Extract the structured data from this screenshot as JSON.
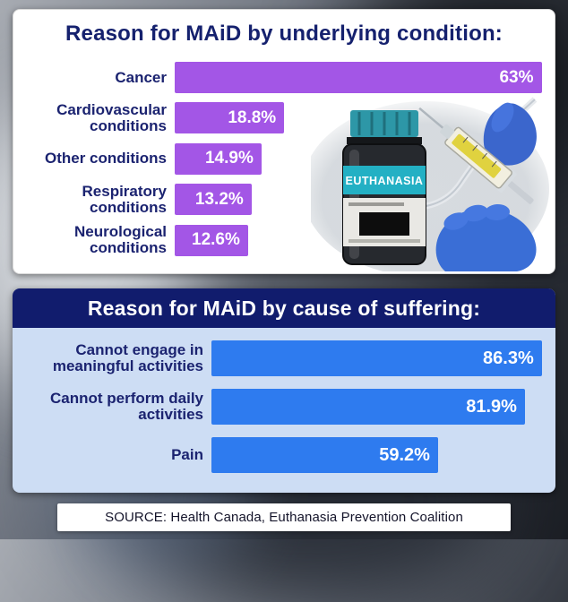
{
  "page": {
    "source_note": "SOURCE: Health Canada, Euthanasia Prevention Coalition"
  },
  "illustration": {
    "vial_label": "EUTHANASIA"
  },
  "chart_data": [
    {
      "type": "bar",
      "orientation": "horizontal",
      "title": "Reason for MAiD by underlying condition:",
      "categories": [
        "Cancer",
        "Cardiovascular conditions",
        "Other conditions",
        "Respiratory conditions",
        "Neurological conditions"
      ],
      "values": [
        63,
        18.8,
        14.9,
        13.2,
        12.6
      ],
      "value_labels": [
        "63%",
        "18.8%",
        "14.9%",
        "13.2%",
        "12.6%"
      ],
      "bar_color": "#a356e6",
      "label_color": "#1b2370",
      "panel_bg": "#ffffff",
      "xlim": [
        0,
        64
      ],
      "grid": false,
      "legend": "none"
    },
    {
      "type": "bar",
      "orientation": "horizontal",
      "title": "Reason for MAiD by cause of suffering:",
      "categories": [
        "Cannot engage in meaningful activities",
        "Cannot perform daily activities",
        "Pain"
      ],
      "values": [
        86.3,
        81.9,
        59.2
      ],
      "value_labels": [
        "86.3%",
        "81.9%",
        "59.2%"
      ],
      "bar_color": "#2e7bef",
      "label_color": "#1b2370",
      "panel_bg": "#cdddf4",
      "xlim": [
        0,
        88
      ],
      "grid": false,
      "legend": "none"
    }
  ]
}
